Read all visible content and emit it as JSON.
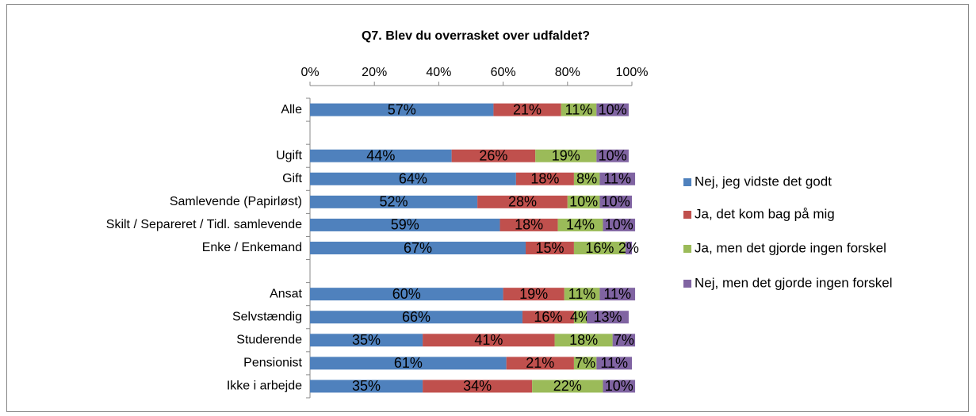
{
  "chart_data": {
    "type": "stacked_bar_horizontal",
    "title": "Q7. Blev du overrasket over udfaldet?",
    "categories": [
      "Alle",
      null,
      "Ugift",
      "Gift",
      "Samlevende (Papirløst)",
      "Skilt / Separeret / Tidl. samlevende",
      "Enke / Enkemand",
      null,
      "Ansat",
      "Selvstændig",
      "Studerende",
      "Pensionist",
      "Ikke i arbejde"
    ],
    "series": [
      {
        "name": "Nej, jeg vidste det godt",
        "color": "#4f81bd",
        "values": [
          57,
          null,
          44,
          64,
          52,
          59,
          67,
          null,
          60,
          66,
          35,
          61,
          35
        ],
        "value_labels": [
          "57%",
          null,
          "44%",
          "64%",
          "52%",
          "59%",
          "67%",
          null,
          "60%",
          "66%",
          "35%",
          "61%",
          "35%"
        ]
      },
      {
        "name": "Ja, det kom bag på mig",
        "color": "#c0504d",
        "values": [
          21,
          null,
          26,
          18,
          28,
          18,
          15,
          null,
          19,
          16,
          41,
          21,
          34
        ],
        "value_labels": [
          "21%",
          null,
          "26%",
          "18%",
          "28%",
          "18%",
          "15%",
          null,
          "19%",
          "16%",
          "41%",
          "21%",
          "34%"
        ]
      },
      {
        "name": "Ja, men det gjorde ingen forskel",
        "color": "#9bbb59",
        "values": [
          11,
          null,
          19,
          8,
          10,
          14,
          16,
          null,
          11,
          4,
          18,
          7,
          22
        ],
        "value_labels": [
          "11%",
          null,
          "19%",
          "8%",
          "10%",
          "14%",
          "16%",
          null,
          "11%",
          "4%",
          "18%",
          "7%",
          "22%"
        ]
      },
      {
        "name": "Nej, men det gjorde ingen forskel",
        "color": "#8064a2",
        "values": [
          10,
          null,
          10,
          11,
          10,
          10,
          2,
          null,
          11,
          13,
          7,
          11,
          10
        ],
        "value_labels": [
          "10%",
          null,
          "10%",
          "11%",
          "10%",
          "10%",
          "2%",
          null,
          "11%",
          "13%",
          "7%",
          "11%",
          "10%"
        ]
      }
    ],
    "xlim": [
      0,
      100
    ],
    "xticks": [
      {
        "value": 0,
        "label": "0%"
      },
      {
        "value": 20,
        "label": "20%"
      },
      {
        "value": 40,
        "label": "40%"
      },
      {
        "value": 60,
        "label": "60%"
      },
      {
        "value": 80,
        "label": "80%"
      },
      {
        "value": 100,
        "label": "100%"
      }
    ],
    "legend": "right"
  }
}
